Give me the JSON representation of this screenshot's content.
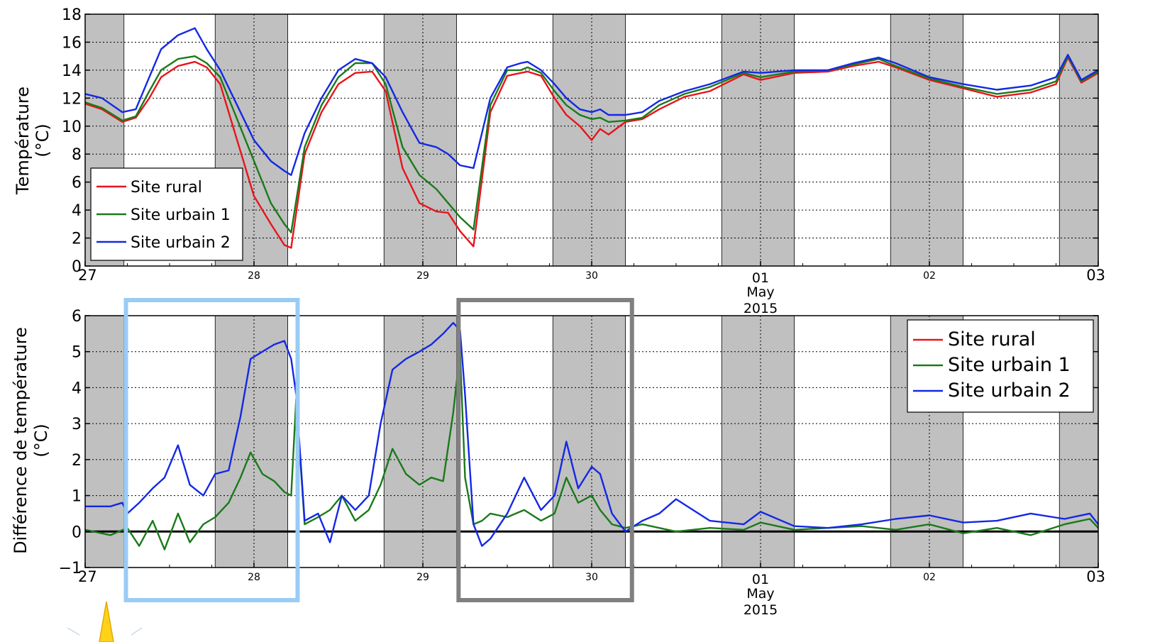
{
  "colors": {
    "rural": "#e8141c",
    "urbain1": "#1a7a1a",
    "urbain2": "#1428e6",
    "night_band": "#c0c0c0",
    "box_light": "#99ccf5",
    "box_gray": "#808080"
  },
  "x_axis": {
    "tick_labels": [
      "27",
      "28",
      "29",
      "30",
      "01",
      "02",
      "03"
    ],
    "sub_labels": [
      "May",
      "2015"
    ]
  },
  "chart_data": [
    {
      "type": "line",
      "ylabel": [
        "Température",
        "(°C)"
      ],
      "ylim": [
        0,
        18
      ],
      "yticks": [
        "0",
        "2",
        "4",
        "6",
        "8",
        "10",
        "12",
        "14",
        "16",
        "18"
      ],
      "grid": true,
      "legend_position": "bottom-left",
      "x_units": "days since 27 April 2015 00:00",
      "night_bands": [
        [
          0,
          0.23
        ],
        [
          0.77,
          1.2
        ],
        [
          1.77,
          2.2
        ],
        [
          2.77,
          3.2
        ],
        [
          3.77,
          4.2
        ],
        [
          4.77,
          5.2
        ],
        [
          5.77,
          6
        ]
      ],
      "series": [
        {
          "name": "Site rural",
          "x": [
            0,
            0.1,
            0.22,
            0.3,
            0.38,
            0.45,
            0.55,
            0.65,
            0.72,
            0.8,
            0.9,
            1.0,
            1.1,
            1.18,
            1.22,
            1.3,
            1.4,
            1.5,
            1.6,
            1.7,
            1.78,
            1.88,
            1.98,
            2.08,
            2.15,
            2.22,
            2.3,
            2.4,
            2.5,
            2.58,
            2.62,
            2.7,
            2.78,
            2.85,
            2.93,
            3.0,
            3.05,
            3.1,
            3.2,
            3.3,
            3.4,
            3.55,
            3.7,
            3.9,
            4.0,
            4.2,
            4.4,
            4.55,
            4.7,
            4.8,
            5.0,
            5.2,
            5.4,
            5.6,
            5.75,
            5.82,
            5.9,
            6.0
          ],
          "y": [
            11.6,
            11.2,
            10.3,
            10.6,
            12.0,
            13.5,
            14.3,
            14.6,
            14.2,
            13.0,
            9.0,
            5.0,
            3.0,
            1.5,
            1.3,
            8.0,
            11.0,
            13.0,
            13.8,
            13.9,
            12.5,
            7.0,
            4.5,
            3.9,
            3.8,
            2.5,
            1.4,
            11.0,
            13.6,
            13.8,
            13.9,
            13.6,
            12.0,
            10.8,
            10.0,
            9.0,
            9.8,
            9.4,
            10.3,
            10.5,
            11.2,
            12.1,
            12.5,
            13.7,
            13.3,
            13.8,
            13.9,
            14.3,
            14.6,
            14.2,
            13.3,
            12.7,
            12.1,
            12.4,
            13.0,
            14.9,
            13.1,
            13.8
          ]
        },
        {
          "name": "Site urbain 1",
          "x": [
            0,
            0.1,
            0.22,
            0.3,
            0.38,
            0.45,
            0.55,
            0.65,
            0.72,
            0.8,
            0.9,
            1.0,
            1.1,
            1.18,
            1.22,
            1.3,
            1.4,
            1.5,
            1.6,
            1.7,
            1.78,
            1.88,
            1.98,
            2.08,
            2.15,
            2.22,
            2.3,
            2.4,
            2.5,
            2.58,
            2.62,
            2.7,
            2.78,
            2.85,
            2.93,
            3.0,
            3.05,
            3.1,
            3.2,
            3.3,
            3.4,
            3.55,
            3.7,
            3.9,
            4.0,
            4.2,
            4.4,
            4.55,
            4.7,
            4.8,
            5.0,
            5.2,
            5.4,
            5.6,
            5.75,
            5.82,
            5.9,
            6.0
          ],
          "y": [
            11.7,
            11.3,
            10.4,
            10.7,
            12.5,
            14.0,
            14.8,
            15.0,
            14.5,
            13.5,
            10.5,
            7.5,
            4.5,
            3.0,
            2.4,
            8.5,
            11.5,
            13.5,
            14.5,
            14.5,
            13.0,
            8.5,
            6.5,
            5.5,
            4.5,
            3.5,
            2.6,
            11.5,
            14.0,
            14.0,
            14.2,
            13.8,
            12.5,
            11.5,
            10.8,
            10.5,
            10.6,
            10.3,
            10.4,
            10.6,
            11.5,
            12.3,
            12.8,
            13.8,
            13.5,
            13.9,
            14.0,
            14.4,
            14.8,
            14.3,
            13.4,
            12.8,
            12.3,
            12.6,
            13.2,
            15.0,
            13.2,
            13.9
          ]
        },
        {
          "name": "Site urbain 2",
          "x": [
            0,
            0.1,
            0.22,
            0.3,
            0.38,
            0.45,
            0.55,
            0.65,
            0.72,
            0.8,
            0.9,
            1.0,
            1.1,
            1.18,
            1.22,
            1.3,
            1.4,
            1.5,
            1.6,
            1.7,
            1.78,
            1.88,
            1.98,
            2.08,
            2.15,
            2.22,
            2.3,
            2.4,
            2.5,
            2.58,
            2.62,
            2.7,
            2.78,
            2.85,
            2.93,
            3.0,
            3.05,
            3.1,
            3.2,
            3.3,
            3.4,
            3.55,
            3.7,
            3.9,
            4.0,
            4.2,
            4.4,
            4.55,
            4.7,
            4.8,
            5.0,
            5.2,
            5.4,
            5.6,
            5.75,
            5.82,
            5.9,
            6.0
          ],
          "y": [
            12.3,
            12.0,
            11.0,
            11.2,
            13.5,
            15.5,
            16.5,
            17.0,
            15.5,
            14.0,
            11.5,
            9.0,
            7.5,
            6.8,
            6.5,
            9.5,
            12.0,
            14.0,
            14.8,
            14.5,
            13.5,
            11.0,
            8.8,
            8.5,
            8.0,
            7.2,
            7.0,
            12.0,
            14.2,
            14.5,
            14.6,
            14.0,
            13.0,
            12.0,
            11.2,
            11.0,
            11.2,
            10.8,
            10.8,
            11.0,
            11.8,
            12.5,
            13.0,
            13.9,
            13.8,
            14.0,
            14.0,
            14.5,
            14.9,
            14.5,
            13.5,
            13.0,
            12.6,
            12.9,
            13.5,
            15.1,
            13.3,
            14.0
          ]
        }
      ]
    },
    {
      "type": "line",
      "ylabel": [
        "Différence de température",
        "(°C)"
      ],
      "ylim": [
        -1,
        6
      ],
      "yticks": [
        "−1",
        "0",
        "1",
        "2",
        "3",
        "4",
        "5",
        "6"
      ],
      "grid": true,
      "legend_position": "top-right",
      "x_units": "days since 27 April 2015 00:00",
      "night_bands": [
        [
          0,
          0.23
        ],
        [
          0.77,
          1.2
        ],
        [
          1.77,
          2.2
        ],
        [
          2.77,
          3.2
        ],
        [
          3.77,
          4.2
        ],
        [
          4.77,
          5.2
        ],
        [
          5.77,
          6
        ]
      ],
      "highlight_boxes": [
        {
          "x_range": [
            0.25,
            1.25
          ],
          "color": "light-blue"
        },
        {
          "x_range": [
            2.22,
            3.23
          ],
          "color": "gray"
        }
      ],
      "series": [
        {
          "name": "Site rural",
          "x": [
            0,
            6
          ],
          "y": [
            0,
            0
          ]
        },
        {
          "name": "Site urbain 1",
          "x": [
            0,
            0.15,
            0.25,
            0.32,
            0.4,
            0.47,
            0.55,
            0.62,
            0.7,
            0.77,
            0.85,
            0.92,
            0.98,
            1.05,
            1.12,
            1.18,
            1.22,
            1.25,
            1.3,
            1.38,
            1.45,
            1.52,
            1.6,
            1.68,
            1.75,
            1.82,
            1.9,
            1.98,
            2.05,
            2.12,
            2.18,
            2.22,
            2.25,
            2.3,
            2.35,
            2.4,
            2.5,
            2.6,
            2.7,
            2.78,
            2.85,
            2.92,
            3.0,
            3.05,
            3.12,
            3.2,
            3.3,
            3.5,
            3.7,
            3.9,
            4.0,
            4.2,
            4.4,
            4.6,
            4.8,
            5.0,
            5.2,
            5.4,
            5.6,
            5.8,
            5.95,
            6.0
          ],
          "y": [
            0.05,
            -0.1,
            0.1,
            -0.4,
            0.3,
            -0.5,
            0.5,
            -0.3,
            0.2,
            0.4,
            0.8,
            1.5,
            2.2,
            1.6,
            1.4,
            1.1,
            1.0,
            3.7,
            0.2,
            0.4,
            0.6,
            1.0,
            0.3,
            0.6,
            1.3,
            2.3,
            1.6,
            1.3,
            1.5,
            1.4,
            3.3,
            5.0,
            1.5,
            0.2,
            0.3,
            0.5,
            0.4,
            0.6,
            0.3,
            0.5,
            1.5,
            0.8,
            1.0,
            0.6,
            0.2,
            0.1,
            0.2,
            0.0,
            0.1,
            0.05,
            0.25,
            0.05,
            0.1,
            0.15,
            0.05,
            0.2,
            -0.05,
            0.1,
            -0.1,
            0.2,
            0.35,
            0.1
          ]
        },
        {
          "name": "Site urbain 2",
          "x": [
            0,
            0.15,
            0.22,
            0.25,
            0.32,
            0.4,
            0.47,
            0.55,
            0.62,
            0.7,
            0.77,
            0.85,
            0.92,
            0.98,
            1.05,
            1.12,
            1.18,
            1.22,
            1.25,
            1.3,
            1.38,
            1.45,
            1.52,
            1.6,
            1.68,
            1.75,
            1.82,
            1.9,
            1.98,
            2.05,
            2.12,
            2.18,
            2.22,
            2.25,
            2.3,
            2.35,
            2.4,
            2.5,
            2.6,
            2.7,
            2.78,
            2.85,
            2.92,
            3.0,
            3.05,
            3.12,
            3.2,
            3.3,
            3.4,
            3.5,
            3.7,
            3.9,
            4.0,
            4.2,
            4.4,
            4.6,
            4.8,
            5.0,
            5.2,
            5.4,
            5.6,
            5.8,
            5.95,
            6.0
          ],
          "y": [
            0.7,
            0.7,
            0.8,
            0.5,
            0.8,
            1.2,
            1.5,
            2.4,
            1.3,
            1.0,
            1.6,
            1.7,
            3.2,
            4.8,
            5.0,
            5.2,
            5.3,
            4.8,
            3.8,
            0.3,
            0.5,
            -0.3,
            1.0,
            0.6,
            1.0,
            3.0,
            4.5,
            4.8,
            5.0,
            5.2,
            5.5,
            5.8,
            5.6,
            3.8,
            0.2,
            -0.4,
            -0.2,
            0.5,
            1.5,
            0.6,
            1.0,
            2.5,
            1.2,
            1.8,
            1.6,
            0.5,
            0.0,
            0.3,
            0.5,
            0.9,
            0.3,
            0.2,
            0.55,
            0.15,
            0.1,
            0.2,
            0.35,
            0.45,
            0.25,
            0.3,
            0.5,
            0.35,
            0.5,
            0.2
          ]
        }
      ]
    }
  ]
}
